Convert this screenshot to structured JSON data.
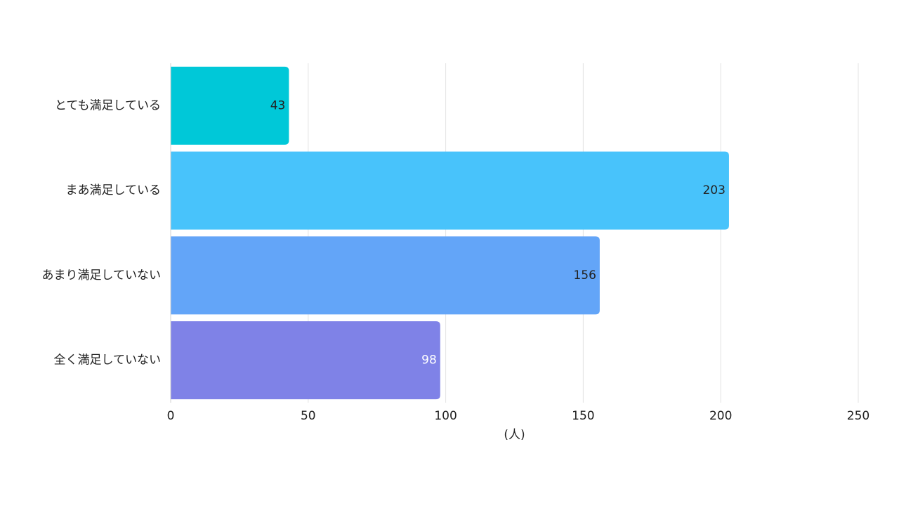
{
  "chart_data": {
    "type": "bar",
    "orientation": "horizontal",
    "categories": [
      "とても満足している",
      "まあ満足している",
      "あまり満足していない",
      "全く満足していない"
    ],
    "values": [
      43,
      203,
      156,
      98
    ],
    "data_labels": [
      "43",
      "203",
      "156",
      "98"
    ],
    "xlabel": "(人)",
    "ylabel": "",
    "xlim": [
      0,
      250
    ],
    "x_ticks": [
      0,
      50,
      100,
      150,
      200,
      250
    ],
    "x_tick_labels": [
      "0",
      "50",
      "100",
      "150",
      "200",
      "250"
    ],
    "grid": "vertical",
    "legend": "none",
    "colors": [
      "#00C8D8",
      "#48C3FB",
      "#63A5F8",
      "#7F82E7"
    ],
    "label_colors": [
      "#222222",
      "#222222",
      "#222222",
      "#ffffff"
    ]
  }
}
